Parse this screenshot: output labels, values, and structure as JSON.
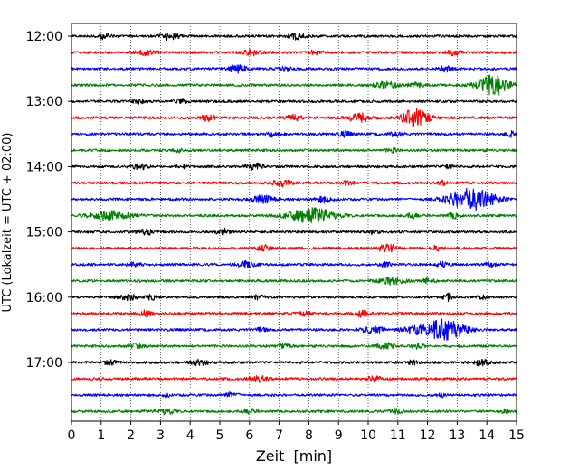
{
  "chart_data": {
    "type": "line",
    "subtype": "helicorder-seismogram",
    "xlabel": "Zeit  [min]",
    "ylabel": "UTC (Lokalzeit = UTC + 02:00)",
    "xlim": [
      0,
      15
    ],
    "x_ticks": [
      "0",
      "1",
      "2",
      "3",
      "4",
      "5",
      "6",
      "7",
      "8",
      "9",
      "10",
      "11",
      "12",
      "13",
      "14",
      "15"
    ],
    "y_tick_labels": [
      "12:00",
      "13:00",
      "14:00",
      "15:00",
      "16:00",
      "17:00"
    ],
    "trace_interval_minutes": 15,
    "grid": {
      "vertical_dotted": true
    },
    "trace_colors": [
      "#000000",
      "#ff0000",
      "#0000ff",
      "#008000"
    ],
    "traces": [
      {
        "start": "12:00",
        "color": "#000000",
        "events": [
          [
            1.1,
            0.35,
            0.15
          ],
          [
            3.3,
            0.5,
            0.2
          ],
          [
            7.6,
            0.4,
            0.2
          ]
        ]
      },
      {
        "start": "12:15",
        "color": "#ff0000",
        "events": [
          [
            2.5,
            0.3,
            0.25
          ],
          [
            6.1,
            0.35,
            0.2
          ],
          [
            8.2,
            0.3,
            0.15
          ],
          [
            12.9,
            0.35,
            0.15
          ]
        ]
      },
      {
        "start": "12:30",
        "color": "#0000ff",
        "events": [
          [
            5.6,
            0.5,
            0.2
          ],
          [
            7.2,
            0.35,
            0.15
          ],
          [
            12.6,
            0.35,
            0.15
          ]
        ]
      },
      {
        "start": "12:45",
        "color": "#008000",
        "events": [
          [
            10.6,
            0.45,
            0.3
          ],
          [
            11.6,
            0.35,
            0.15
          ],
          [
            14.2,
            1.5,
            0.35
          ]
        ]
      },
      {
        "start": "13:00",
        "color": "#000000",
        "events": [
          [
            3.7,
            0.35,
            0.15
          ],
          [
            2.3,
            0.25,
            0.15
          ]
        ]
      },
      {
        "start": "13:15",
        "color": "#ff0000",
        "events": [
          [
            4.6,
            0.4,
            0.15
          ],
          [
            7.5,
            0.35,
            0.2
          ],
          [
            9.7,
            0.6,
            0.25
          ],
          [
            11.6,
            1.4,
            0.3
          ]
        ]
      },
      {
        "start": "13:30",
        "color": "#0000ff",
        "events": [
          [
            6.8,
            0.4,
            0.15
          ],
          [
            9.2,
            0.35,
            0.15
          ],
          [
            10.9,
            0.3,
            0.15
          ],
          [
            14.8,
            0.35,
            0.12
          ]
        ]
      },
      {
        "start": "13:45",
        "color": "#008000",
        "events": [
          [
            3.6,
            0.3,
            0.1
          ],
          [
            10.8,
            0.3,
            0.12
          ]
        ]
      },
      {
        "start": "14:00",
        "color": "#000000",
        "events": [
          [
            2.3,
            0.35,
            0.2
          ],
          [
            6.2,
            0.4,
            0.2
          ],
          [
            3.7,
            0.25,
            0.1
          ],
          [
            12.7,
            0.3,
            0.1
          ]
        ]
      },
      {
        "start": "14:15",
        "color": "#ff0000",
        "events": [
          [
            7.1,
            0.45,
            0.2
          ],
          [
            9.3,
            0.3,
            0.15
          ],
          [
            12.5,
            0.3,
            0.1
          ]
        ]
      },
      {
        "start": "14:30",
        "color": "#0000ff",
        "events": [
          [
            6.4,
            0.5,
            0.3
          ],
          [
            8.5,
            0.45,
            0.2
          ],
          [
            13.5,
            1.6,
            0.55
          ]
        ]
      },
      {
        "start": "14:45",
        "color": "#008000",
        "events": [
          [
            1.3,
            0.6,
            0.5
          ],
          [
            8.1,
            1.0,
            0.55
          ],
          [
            11.5,
            0.35,
            0.15
          ],
          [
            12.9,
            0.35,
            0.15
          ]
        ]
      },
      {
        "start": "15:00",
        "color": "#000000",
        "events": [
          [
            2.5,
            0.35,
            0.2
          ],
          [
            5.1,
            0.45,
            0.15
          ],
          [
            10.2,
            0.3,
            0.15
          ]
        ]
      },
      {
        "start": "15:15",
        "color": "#ff0000",
        "events": [
          [
            6.5,
            0.4,
            0.15
          ],
          [
            10.7,
            0.5,
            0.25
          ],
          [
            12.3,
            0.3,
            0.15
          ]
        ]
      },
      {
        "start": "15:30",
        "color": "#0000ff",
        "events": [
          [
            2.1,
            0.3,
            0.15
          ],
          [
            5.9,
            0.4,
            0.2
          ],
          [
            10.6,
            0.3,
            0.15
          ],
          [
            12.5,
            0.35,
            0.12
          ],
          [
            14.1,
            0.35,
            0.12
          ]
        ]
      },
      {
        "start": "15:45",
        "color": "#008000",
        "events": [
          [
            10.8,
            0.45,
            0.3
          ],
          [
            12.0,
            0.3,
            0.15
          ]
        ]
      },
      {
        "start": "16:00",
        "color": "#000000",
        "events": [
          [
            1.9,
            0.4,
            0.25
          ],
          [
            2.7,
            0.35,
            0.15
          ],
          [
            6.3,
            0.3,
            0.15
          ],
          [
            12.7,
            0.45,
            0.12
          ],
          [
            13.8,
            0.3,
            0.12
          ]
        ]
      },
      {
        "start": "16:15",
        "color": "#ff0000",
        "events": [
          [
            2.5,
            0.4,
            0.15
          ],
          [
            7.9,
            0.3,
            0.15
          ],
          [
            9.8,
            0.45,
            0.15
          ]
        ]
      },
      {
        "start": "16:30",
        "color": "#0000ff",
        "events": [
          [
            10.2,
            0.4,
            0.3
          ],
          [
            11.5,
            0.45,
            0.3
          ],
          [
            12.6,
            1.6,
            0.45
          ],
          [
            6.4,
            0.25,
            0.15
          ]
        ]
      },
      {
        "start": "16:45",
        "color": "#008000",
        "events": [
          [
            2.2,
            0.35,
            0.2
          ],
          [
            7.2,
            0.3,
            0.15
          ],
          [
            10.6,
            0.45,
            0.2
          ],
          [
            11.7,
            0.35,
            0.15
          ]
        ]
      },
      {
        "start": "17:00",
        "color": "#000000",
        "events": [
          [
            1.3,
            0.3,
            0.15
          ],
          [
            4.3,
            0.35,
            0.2
          ],
          [
            11.5,
            0.3,
            0.1
          ],
          [
            13.8,
            0.4,
            0.2
          ]
        ]
      },
      {
        "start": "17:15",
        "color": "#ff0000",
        "events": [
          [
            6.3,
            0.4,
            0.2
          ],
          [
            10.2,
            0.4,
            0.15
          ]
        ]
      },
      {
        "start": "17:30",
        "color": "#0000ff",
        "events": [
          [
            5.4,
            0.35,
            0.15
          ],
          [
            3.2,
            0.2,
            0.1
          ],
          [
            12.5,
            0.25,
            0.1
          ]
        ]
      },
      {
        "start": "17:45",
        "color": "#008000",
        "events": [
          [
            3.2,
            0.4,
            0.2
          ],
          [
            6.0,
            0.35,
            0.15
          ],
          [
            10.9,
            0.35,
            0.15
          ],
          [
            14.6,
            0.25,
            0.1
          ]
        ]
      }
    ]
  }
}
